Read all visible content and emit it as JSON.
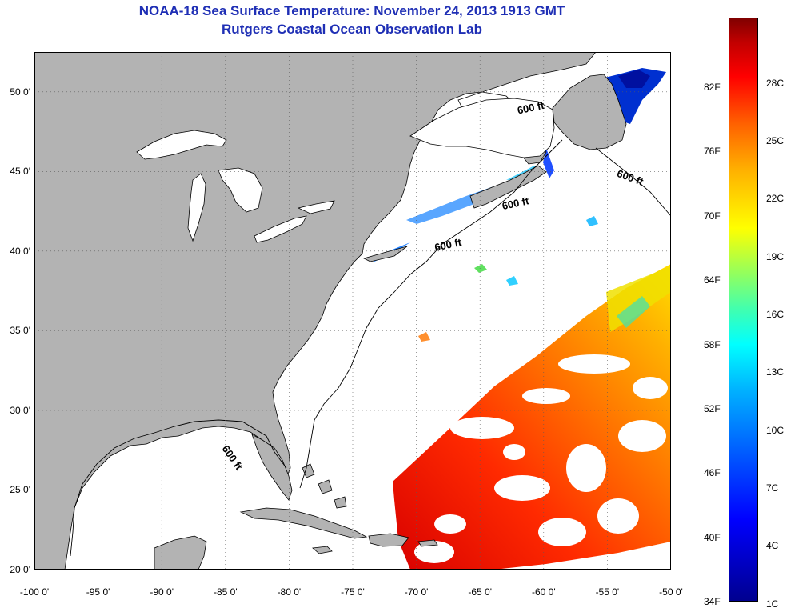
{
  "title": {
    "line1": "NOAA-18 Sea Surface Temperature:  November 24, 2013 1913 GMT",
    "line2": "Rutgers Coastal Ocean Observation Lab"
  },
  "map": {
    "lon_range": [
      -100,
      -50
    ],
    "lat_range": [
      20,
      52.5
    ],
    "lat_ticks": [
      "20 0'",
      "25 0'",
      "30 0'",
      "35 0'",
      "40 0'",
      "45 0'",
      "50 0'"
    ],
    "lon_ticks": [
      "-100 0'",
      "-95 0'",
      "-90 0'",
      "-85 0'",
      "-80 0'",
      "-75 0'",
      "-70 0'",
      "-65 0'",
      "-60 0'",
      "-55 0'",
      "-50 0'"
    ],
    "depth_labels": [
      {
        "text": "600 ft",
        "lon": -62.0,
        "lat": 48.6
      },
      {
        "text": "600 ft",
        "lon": -54.3,
        "lat": 44.7
      },
      {
        "text": "600 ft",
        "lon": -63.2,
        "lat": 42.6
      },
      {
        "text": "600 ft",
        "lon": -68.5,
        "lat": 40.0
      },
      {
        "text": "600 ft",
        "lon": -85.3,
        "lat": 27.6
      }
    ],
    "colors": {
      "land": "#b3b3b3",
      "ocean": "#ffffff",
      "coastline": "#000000",
      "gridline": "#5a5a5a",
      "title": "#1f2fb5"
    }
  },
  "colorbar": {
    "f_labels": [
      "82F",
      "76F",
      "70F",
      "64F",
      "58F",
      "52F",
      "46F",
      "40F",
      "34F"
    ],
    "c_labels": [
      "28C",
      "25C",
      "22C",
      "19C",
      "16C",
      "13C",
      "10C",
      "7C",
      "4C",
      "1C"
    ]
  }
}
